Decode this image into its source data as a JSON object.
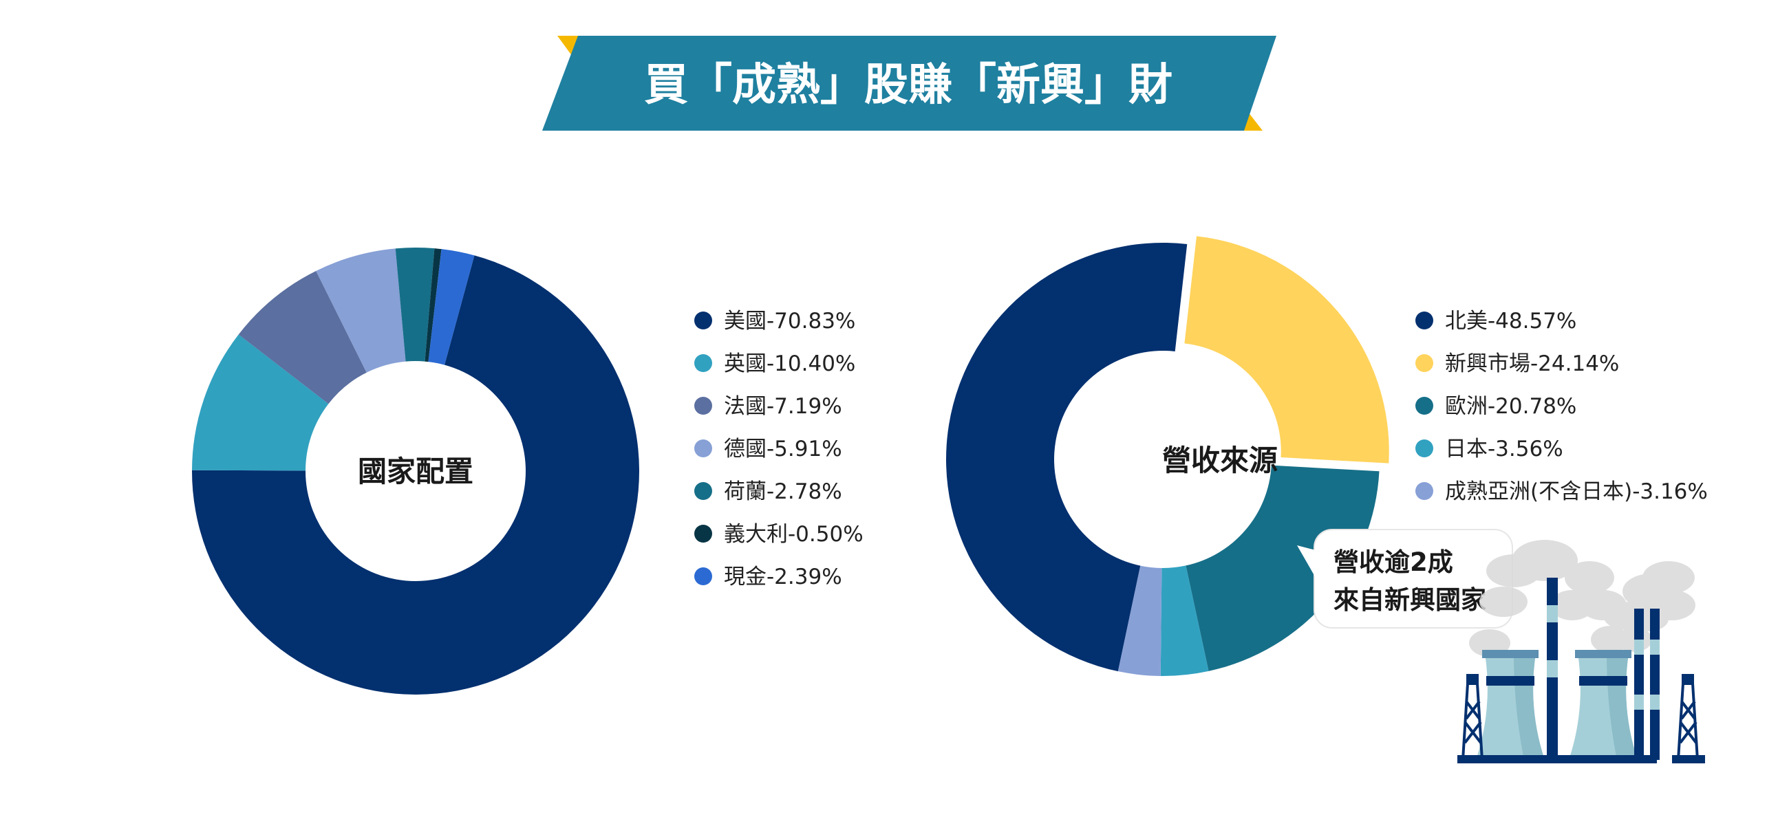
{
  "banner": {
    "title": "買「成熟」股賺「新興」財",
    "band_color": "#1f80a0",
    "accent_color": "#f5b800"
  },
  "chart_data": [
    {
      "type": "pie",
      "center_label": "國家配置",
      "slices": [
        {
          "label": "美國-70.83%",
          "value": 70.83,
          "color": "#03306f"
        },
        {
          "label": "英國-10.40%",
          "value": 10.4,
          "color": "#31a1c0"
        },
        {
          "label": "法國-7.19%",
          "value": 7.19,
          "color": "#5b6fa0"
        },
        {
          "label": "德國-5.91%",
          "value": 5.91,
          "color": "#87a0d6"
        },
        {
          "label": "荷蘭-2.78%",
          "value": 2.78,
          "color": "#166f88"
        },
        {
          "label": "義大利-0.50%",
          "value": 0.5,
          "color": "#083545"
        },
        {
          "label": "現金-2.39%",
          "value": 2.39,
          "color": "#2b6ad3"
        }
      ]
    },
    {
      "type": "pie",
      "center_label": "營收來源",
      "slices": [
        {
          "label": "北美-48.57%",
          "value": 48.57,
          "color": "#03306f"
        },
        {
          "label": "新興市場-24.14%",
          "value": 24.14,
          "color": "#ffd35c",
          "exploded": true
        },
        {
          "label": "歐洲-20.78%",
          "value": 20.78,
          "color": "#166f88"
        },
        {
          "label": "日本-3.56%",
          "value": 3.56,
          "color": "#31a1c0"
        },
        {
          "label": "成熟亞洲(不含日本)-3.16%",
          "value": 3.16,
          "color": "#87a0d6"
        }
      ],
      "callout": {
        "line1": "營收逾2成",
        "line2": "來自新興國家"
      }
    }
  ],
  "illustration": {
    "icon": "factory-icon"
  }
}
